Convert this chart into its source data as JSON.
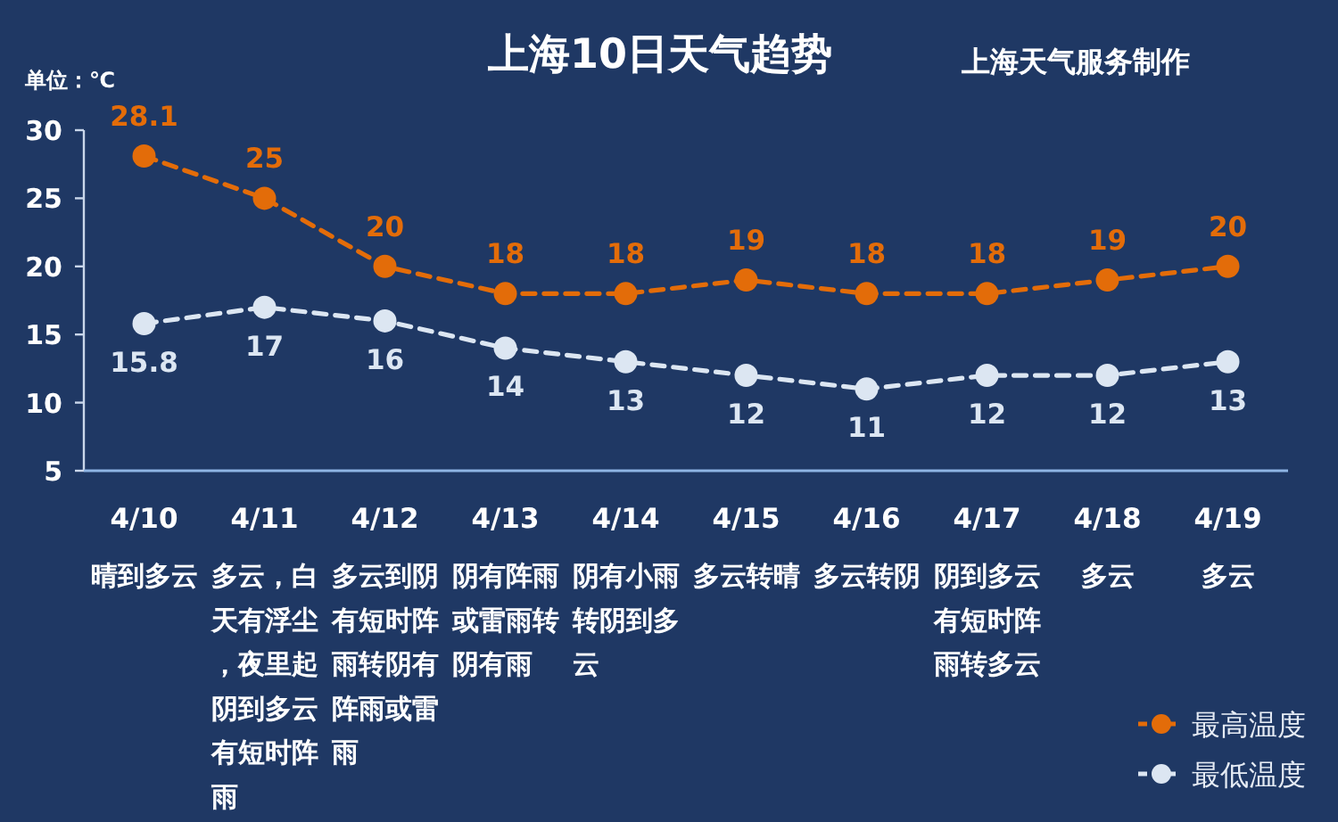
{
  "chart_data": {
    "type": "line",
    "title": "上海10日天气趋势",
    "subtitle": "上海天气服务制作",
    "ylabel": "单位：℃",
    "categories": [
      "4/10",
      "4/11",
      "4/12",
      "4/13",
      "4/14",
      "4/15",
      "4/16",
      "4/17",
      "4/18",
      "4/19"
    ],
    "series": [
      {
        "name": "最高温度",
        "color": "#e36c09",
        "values": [
          28.1,
          25,
          20,
          18,
          18,
          19,
          18,
          18,
          19,
          20
        ]
      },
      {
        "name": "最低温度",
        "color": "#dce6f2",
        "values": [
          15.8,
          17,
          16,
          14,
          13,
          12,
          11,
          12,
          12,
          13
        ]
      }
    ],
    "ylim": [
      5,
      30
    ],
    "yticks": [
      5,
      10,
      15,
      20,
      25,
      30
    ],
    "annotations": [
      "晴到多云",
      "多云，白天有浮尘，夜里起阴到多云有短时阵雨",
      "多云到阴有短时阵雨转阴有阵雨或雷雨",
      "阴有阵雨或雷雨转阴有雨",
      "阴有小雨转阴到多云",
      "多云转晴",
      "多云转阴",
      "阴到多云有短时阵雨转多云",
      "多云",
      "多云"
    ],
    "legend": "bottom right",
    "marker": "circle",
    "line_style": "dashed",
    "data_labels": true
  }
}
